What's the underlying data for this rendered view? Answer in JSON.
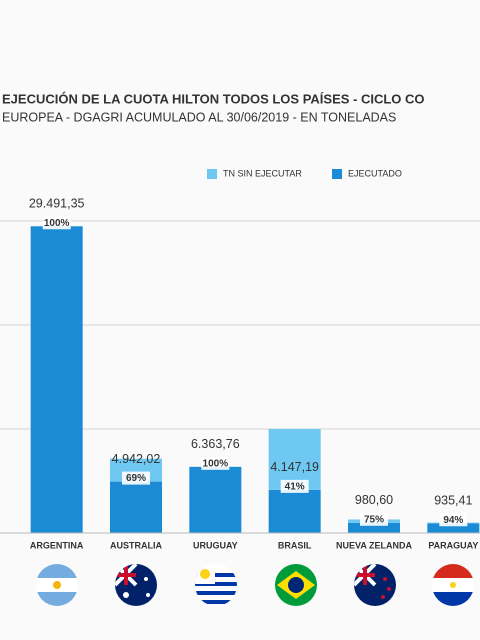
{
  "chart_data": {
    "type": "stacked_bar",
    "title": "EJECUCIÓN DE LA CUOTA HILTON TODOS LOS PAÍSES - CICLO CO",
    "subtitle": "EUROPEA - DGAGRI ACUMULADO AL 30/06/2019 - EN TONELADAS",
    "categories": [
      "ARGENTINA",
      "AUSTRALIA",
      "URUGUAY",
      "BRASIL",
      "NUEVA ZELANDA",
      "PARAGUAY"
    ],
    "series": [
      {
        "name": "EJECUTADO",
        "color": "#1a8bd4",
        "values": [
          29491.35,
          4942.02,
          6363.76,
          4147.19,
          980.6,
          935.41
        ],
        "value_labels": [
          "29.491,35",
          "4.942,02",
          "6.363,76",
          "4.147,19",
          "980,60",
          "935,41"
        ]
      },
      {
        "name": "TN SIN EJECUTAR",
        "color": "#6ec8f2",
        "values": [
          0,
          2208,
          0,
          5853,
          319,
          65
        ]
      }
    ],
    "shares": {
      "values": [
        100,
        69,
        100,
        41,
        75,
        94
      ],
      "value_labels": [
        "100%",
        "69%",
        "100%",
        "41%",
        "75%",
        "94%"
      ]
    },
    "legend_order": [
      1,
      0
    ],
    "ylim": [
      0,
      30000
    ],
    "gridlines": [
      0,
      10000,
      20000,
      30000
    ]
  }
}
